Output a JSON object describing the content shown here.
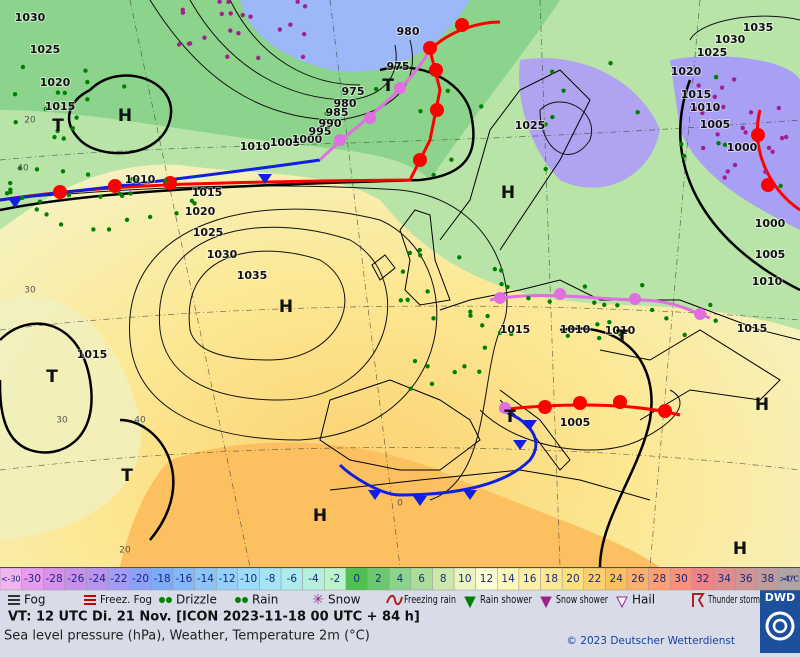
{
  "map": {
    "pressure_labels": [
      "1030",
      "1025",
      "1020",
      "1015",
      "1010",
      "1015",
      "1020",
      "1025",
      "1030",
      "1035",
      "1010",
      "1005",
      "1000",
      "995",
      "990",
      "985",
      "980",
      "975",
      "980",
      "975",
      "1025",
      "1035",
      "1030",
      "1025",
      "1020",
      "1015",
      "1010",
      "1005",
      "1000",
      "1000",
      "1005",
      "1010",
      "1015",
      "1015",
      "1010",
      "1010",
      "1015",
      "1005"
    ],
    "centers": [
      "H",
      "T",
      "H",
      "T",
      "H",
      "T",
      "T",
      "H",
      "T",
      "T",
      "H",
      "H"
    ],
    "temperature_marks": [
      "40",
      "30",
      "20",
      "40",
      "30",
      "20",
      "0"
    ]
  },
  "scale": {
    "cells": [
      {
        "label": "<-30",
        "color": "#f0b4f0"
      },
      {
        "label": "-30",
        "color": "#e89cf0"
      },
      {
        "label": "-28",
        "color": "#d890ec"
      },
      {
        "label": "-26",
        "color": "#c890ec"
      },
      {
        "label": "-24",
        "color": "#b894f0"
      },
      {
        "label": "-22",
        "color": "#a49cf4"
      },
      {
        "label": "-20",
        "color": "#8ca0f8"
      },
      {
        "label": "-18",
        "color": "#7cacf8"
      },
      {
        "label": "-16",
        "color": "#84b8f8"
      },
      {
        "label": "-14",
        "color": "#8cc4f8"
      },
      {
        "label": "-12",
        "color": "#94d0f8"
      },
      {
        "label": "-10",
        "color": "#9cdcf8"
      },
      {
        "label": "-8",
        "color": "#a4e4f4"
      },
      {
        "label": "-6",
        "color": "#acecec"
      },
      {
        "label": "-4",
        "color": "#b4f0dc"
      },
      {
        "label": "-2",
        "color": "#bcf4cc"
      },
      {
        "label": "0",
        "color": "#50c050"
      },
      {
        "label": "2",
        "color": "#6cc86c"
      },
      {
        "label": "4",
        "color": "#8cd48c"
      },
      {
        "label": "6",
        "color": "#acdc9c"
      },
      {
        "label": "8",
        "color": "#cce8ac"
      },
      {
        "label": "10",
        "color": "#ecf4c0"
      },
      {
        "label": "12",
        "color": "#fcfcd4"
      },
      {
        "label": "14",
        "color": "#fcf8bc"
      },
      {
        "label": "16",
        "color": "#fcf0a4"
      },
      {
        "label": "18",
        "color": "#fce894"
      },
      {
        "label": "20",
        "color": "#fce080"
      },
      {
        "label": "22",
        "color": "#fcd070"
      },
      {
        "label": "24",
        "color": "#fcc060"
      },
      {
        "label": "26",
        "color": "#fcb06c"
      },
      {
        "label": "28",
        "color": "#fca074"
      },
      {
        "label": "30",
        "color": "#f8907c"
      },
      {
        "label": "32",
        "color": "#f08484"
      },
      {
        "label": "34",
        "color": "#e08c8c"
      },
      {
        "label": "36",
        "color": "#d09494"
      },
      {
        "label": "38",
        "color": "#c09c9c"
      },
      {
        "label": ">40 °C",
        "color": "#b0a4a4"
      }
    ]
  },
  "legend": {
    "items": [
      {
        "label": "Fog",
        "symbol": "fog",
        "color": "#333333"
      },
      {
        "label": "Freez. Fog",
        "symbol": "fog",
        "color": "#c00000"
      },
      {
        "label": "Drizzle",
        "symbol": "drizzle",
        "color": "#008000"
      },
      {
        "label": "Rain",
        "symbol": "rain",
        "color": "#008000"
      },
      {
        "label": "Snow",
        "symbol": "snow",
        "color": "#a0208c"
      },
      {
        "label": "Freezing rain",
        "symbol": "freezing",
        "color": "#b02020"
      },
      {
        "label": "Rain shower",
        "symbol": "shower",
        "color": "#008000"
      },
      {
        "label": "Snow shower",
        "symbol": "snowshower",
        "color": "#a0208c"
      },
      {
        "label": "Hail",
        "symbol": "hail",
        "color": "#a0208c"
      },
      {
        "label": "Thunder storm",
        "symbol": "thunder",
        "color": "#b02020"
      }
    ]
  },
  "footer": {
    "valid_time": "VT: 12 UTC Di.  21 Nov. [ICON 2023-11-18  00 UTC + 84 h]",
    "description": "Sea level pressure (hPa), Weather, Temperature 2m (°C)",
    "copyright": "© 2023 Deutscher Wetterdienst",
    "logo": "DWD"
  }
}
